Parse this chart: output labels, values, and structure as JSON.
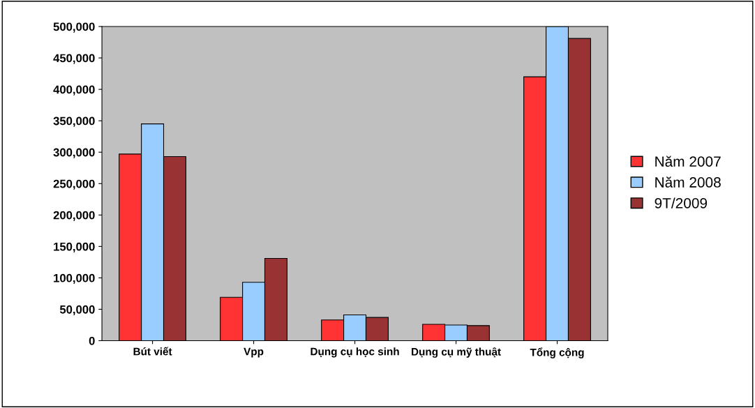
{
  "chart_data": {
    "type": "bar",
    "categories": [
      "Bút viết",
      "Vpp",
      "Dụng cụ học sinh",
      "Dụng cụ mỹ thuật",
      "Tổng cộng"
    ],
    "series": [
      {
        "name": "Năm 2007",
        "color": "#ff3333",
        "values": [
          297000,
          69000,
          33000,
          26000,
          420000
        ]
      },
      {
        "name": "Năm 2008",
        "color": "#99ccff",
        "values": [
          345000,
          93000,
          41000,
          25000,
          500000
        ]
      },
      {
        "name": "9T/2009",
        "color": "#993333",
        "values": [
          293000,
          131000,
          37000,
          24000,
          481000
        ]
      }
    ],
    "ylim": [
      0,
      500000
    ],
    "yticks": [
      {
        "value": 0,
        "label": "0"
      },
      {
        "value": 50000,
        "label": "50,000"
      },
      {
        "value": 100000,
        "label": "100,000"
      },
      {
        "value": 150000,
        "label": "150,000"
      },
      {
        "value": 200000,
        "label": "200,000"
      },
      {
        "value": 250000,
        "label": "250,000"
      },
      {
        "value": 300000,
        "label": "300,000"
      },
      {
        "value": 350000,
        "label": "350,000"
      },
      {
        "value": 400000,
        "label": "400,000"
      },
      {
        "value": 450000,
        "label": "450,000"
      },
      {
        "value": 500000,
        "label": "500,000"
      }
    ],
    "grid": false,
    "legend": "right"
  }
}
